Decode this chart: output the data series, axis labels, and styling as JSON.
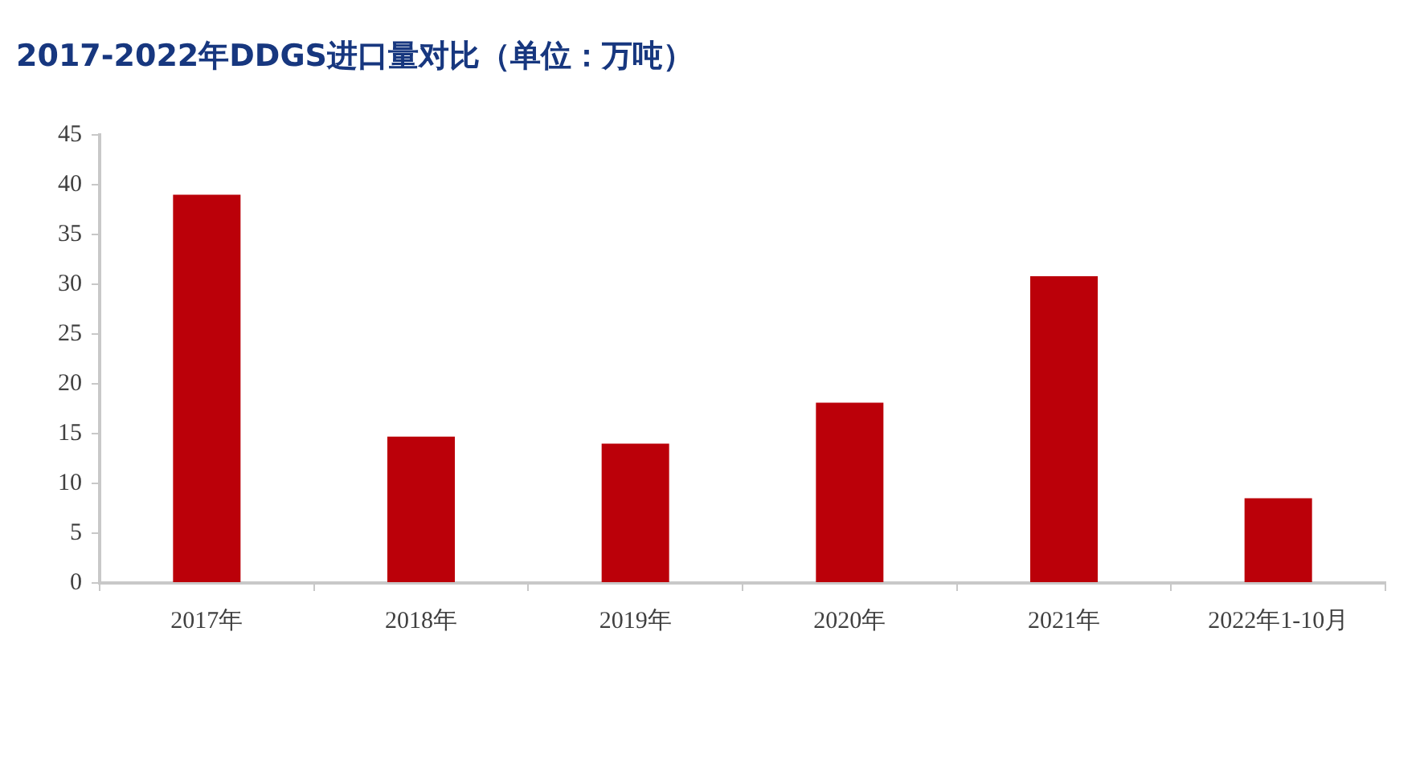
{
  "chart_data": {
    "type": "bar",
    "title": "2017-2022年DDGS进口量对比（单位：万吨）",
    "categories": [
      "2017年",
      "2018年",
      "2019年",
      "2020年",
      "2021年",
      "2022年1-10月"
    ],
    "values": [
      39.0,
      14.7,
      14.0,
      18.1,
      30.8,
      8.5
    ],
    "color": "#bb0009",
    "ylim": [
      0,
      45
    ],
    "yticks": [
      0,
      5,
      10,
      15,
      20,
      25,
      30,
      35,
      40,
      45
    ],
    "legend": false
  }
}
